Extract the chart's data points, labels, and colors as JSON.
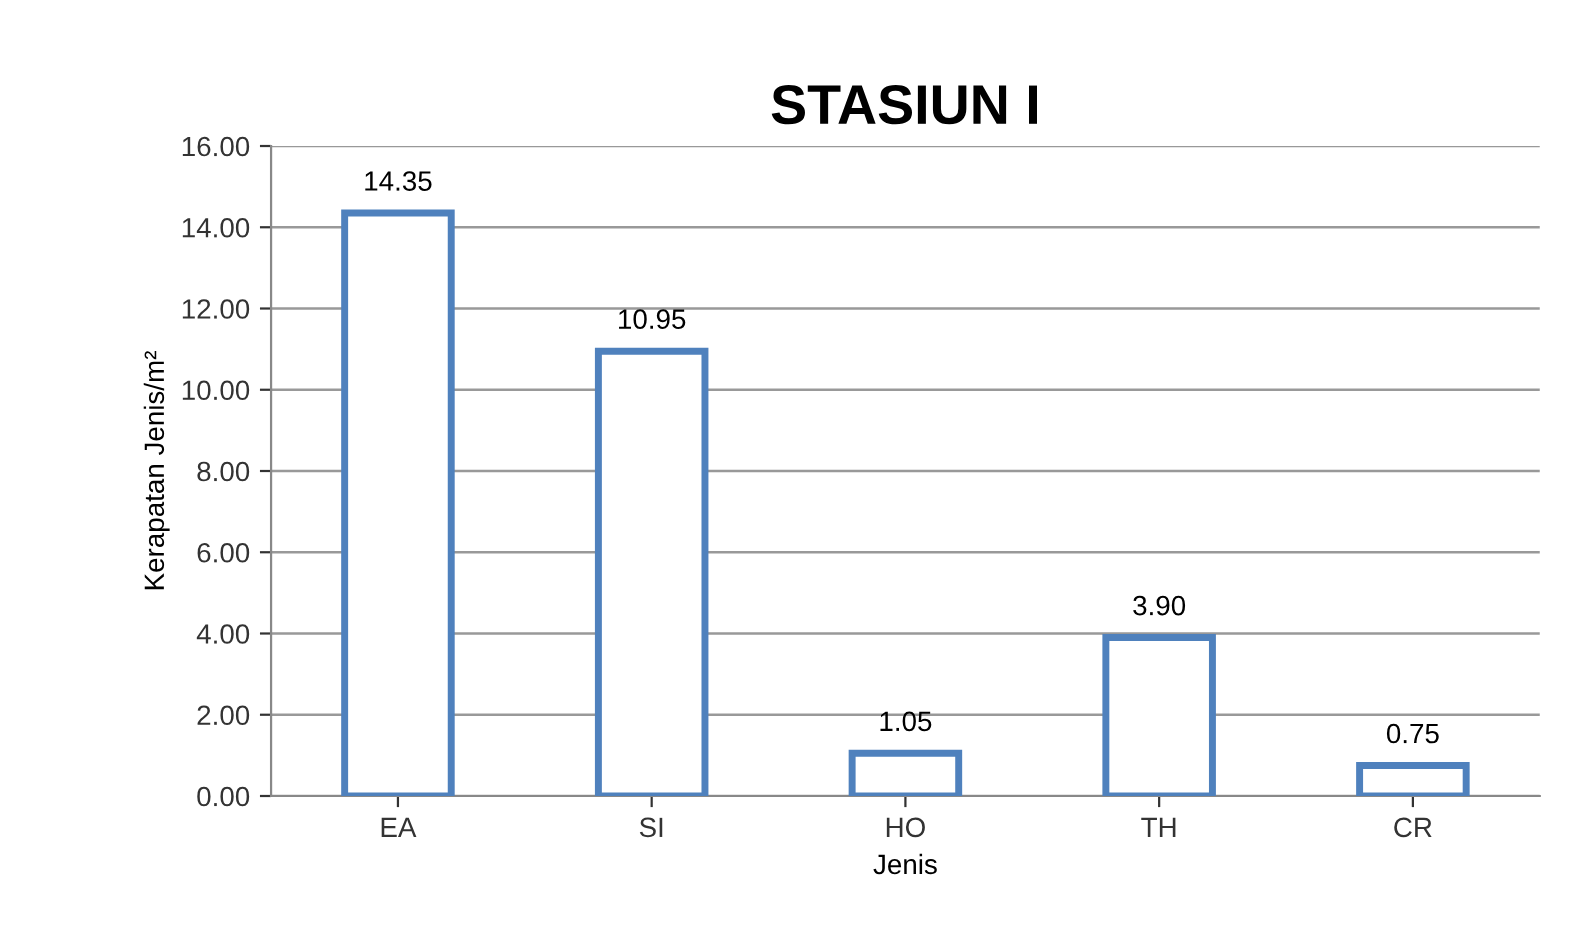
{
  "chart_data": {
    "type": "bar",
    "title": "STASIUN I",
    "xlabel": "Jenis",
    "ylabel": "Kerapatan Jenis/m²",
    "categories": [
      "EA",
      "SI",
      "HO",
      "TH",
      "CR"
    ],
    "values": [
      14.35,
      10.95,
      1.05,
      3.9,
      0.75
    ],
    "value_labels": [
      "14.35",
      "10.95",
      "1.05",
      "3.90",
      "0.75"
    ],
    "color": "#4f81bd",
    "ylim": [
      0,
      16
    ],
    "yticks": [
      {
        "value": 0,
        "label": "0.00"
      },
      {
        "value": 2,
        "label": "2.00"
      },
      {
        "value": 4,
        "label": "4.00"
      },
      {
        "value": 6,
        "label": "6.00"
      },
      {
        "value": 8,
        "label": "8.00"
      },
      {
        "value": 10,
        "label": "10.00"
      },
      {
        "value": 12,
        "label": "12.00"
      },
      {
        "value": 14,
        "label": "14.00"
      },
      {
        "value": 16,
        "label": "16.00"
      }
    ],
    "grid": "y",
    "legend": false
  }
}
